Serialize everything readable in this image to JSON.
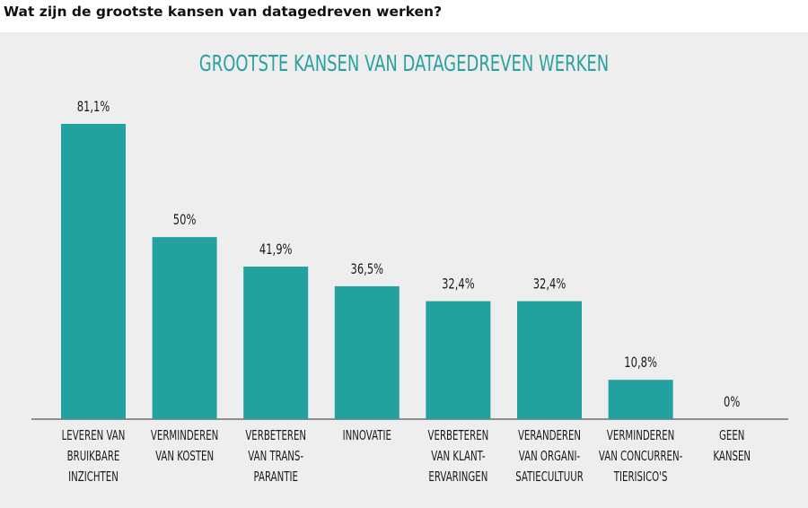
{
  "question": "Wat zijn de grootste kansen van datagedreven werken?",
  "colors": {
    "bar": "#23a19e",
    "title": "#2aa19f",
    "text": "#1a1a1a",
    "panel": "#efeeef"
  },
  "chart_data": {
    "type": "bar",
    "title": "GROOTSTE KANSEN VAN DATAGEDREVEN WERKEN",
    "categories": [
      [
        "LEVEREN VAN",
        "BRUIKBARE",
        "INZICHTEN"
      ],
      [
        "VERMINDEREN",
        "VAN KOSTEN"
      ],
      [
        "VERBETEREN",
        "VAN TRANS-",
        "PARANTIE"
      ],
      [
        "INNOVATIE"
      ],
      [
        "VERBETEREN",
        "VAN KLANT-",
        "ERVARINGEN"
      ],
      [
        "VERANDEREN",
        "VAN ORGANI-",
        "SATIECULTUUR"
      ],
      [
        "VERMINDEREN",
        "VAN CONCURREN-",
        "TIERISICO'S"
      ],
      [
        "GEEN",
        "KANSEN"
      ]
    ],
    "values": [
      81.1,
      50,
      41.9,
      36.5,
      32.4,
      32.4,
      10.8,
      0
    ],
    "data_labels": [
      "81,1%",
      "50%",
      "41,9%",
      "36,5%",
      "32,4%",
      "32,4%",
      "10,8%",
      "0%"
    ],
    "unit": "%",
    "grid": false,
    "legend": "none"
  }
}
